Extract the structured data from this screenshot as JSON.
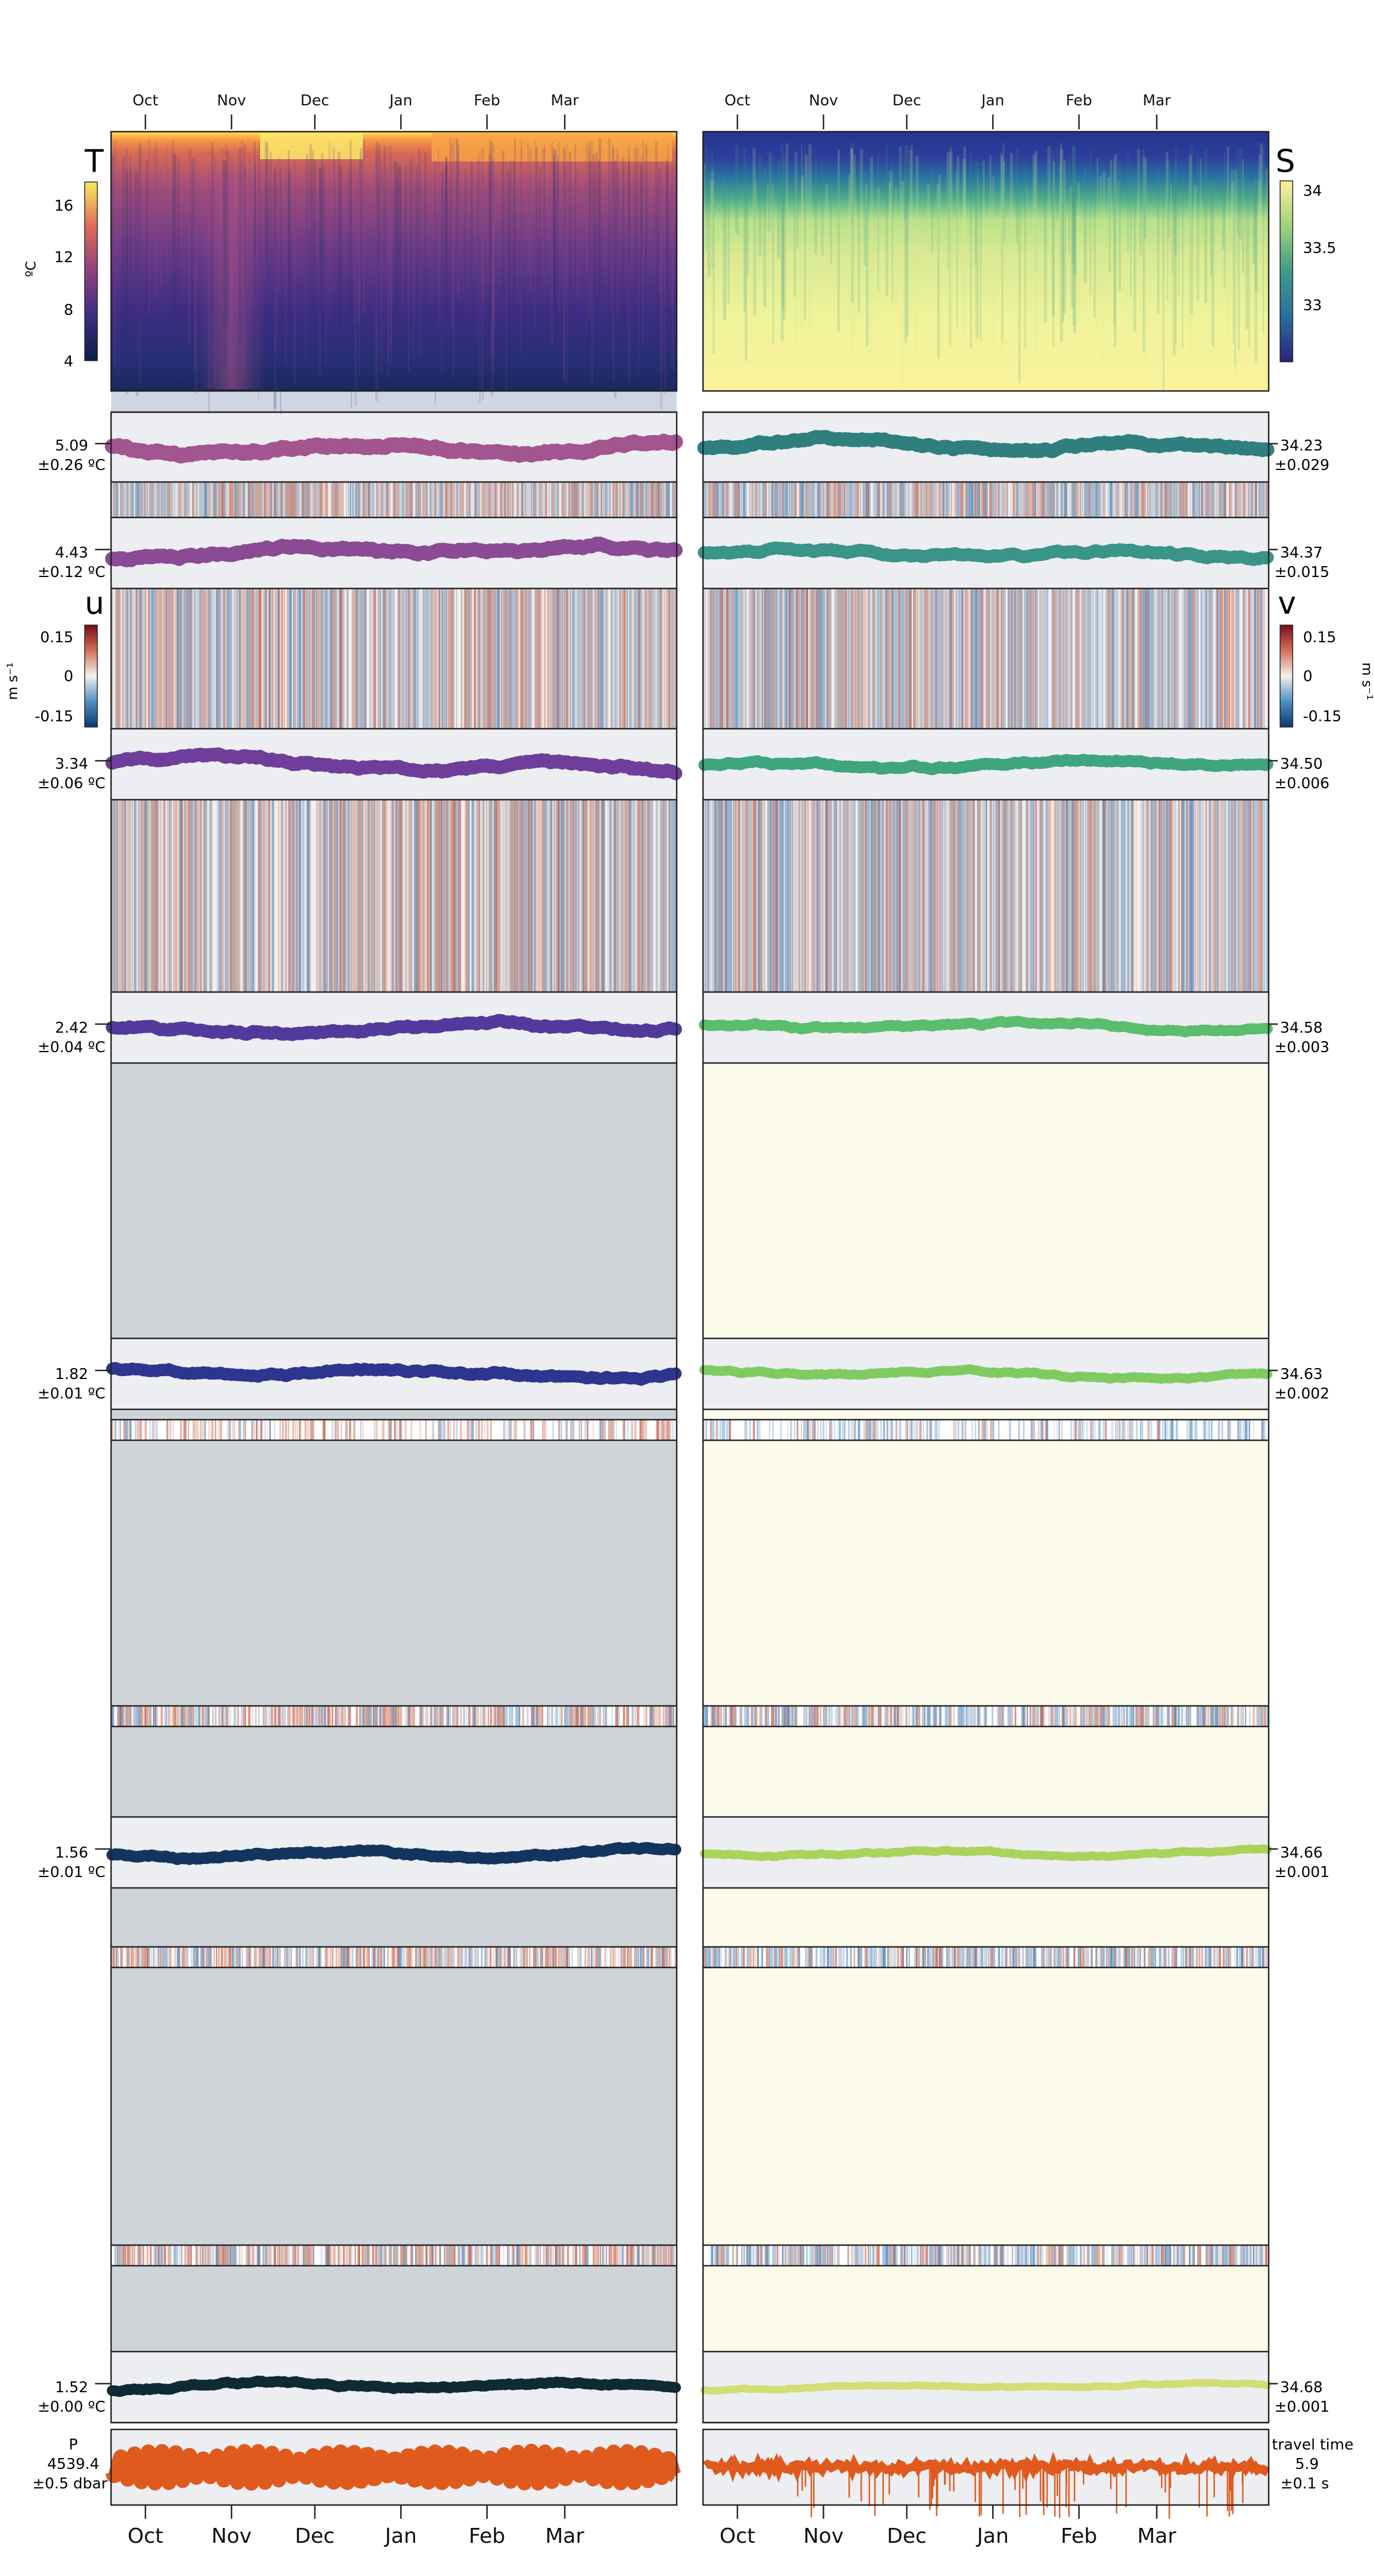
{
  "months": [
    "Oct",
    "Nov",
    "Dec",
    "Jan",
    "Feb",
    "Mar"
  ],
  "month_positions": [
    0,
    31,
    61,
    92,
    123,
    151
  ],
  "days_span": 181,
  "left_column": {
    "label": "T",
    "colorbar": {
      "ticks": [
        "16",
        "12",
        "8",
        "4"
      ],
      "unit": "ºC"
    },
    "velocity_label": "u",
    "velocity_colorbar": {
      "ticks": [
        "0.15",
        "0",
        "-0.15"
      ],
      "unit": "m s⁻¹"
    }
  },
  "right_column": {
    "label": "S",
    "colorbar": {
      "ticks": [
        "34",
        "33.5",
        "33"
      ]
    },
    "velocity_label": "v",
    "velocity_colorbar": {
      "ticks": [
        "0.15",
        "0",
        "-0.15"
      ],
      "unit": "m s⁻¹"
    }
  },
  "rows": [
    {
      "t_mean": "5.09",
      "t_std": "±0.26 ºC",
      "s_mean": "34.23",
      "s_std": "±0.029",
      "t_color": "#a3558f",
      "s_color": "#2f7f7f"
    },
    {
      "t_mean": "4.43",
      "t_std": "±0.12 ºC",
      "s_mean": "34.37",
      "s_std": "±0.015",
      "t_color": "#8a4a96",
      "s_color": "#3a9488"
    },
    {
      "t_mean": "3.34",
      "t_std": "±0.06 ºC",
      "s_mean": "34.50",
      "s_std": "±0.006",
      "t_color": "#6f3e9b",
      "s_color": "#3fa57f"
    },
    {
      "t_mean": "2.42",
      "t_std": "±0.04 ºC",
      "s_mean": "34.58",
      "s_std": "±0.003",
      "t_color": "#523a9c",
      "s_color": "#5bbd6e"
    },
    {
      "t_mean": "1.82",
      "t_std": "±0.01 ºC",
      "s_mean": "34.63",
      "s_std": "±0.002",
      "t_color": "#2d358f",
      "s_color": "#7fcb62"
    },
    {
      "t_mean": "1.56",
      "t_std": "±0.01 ºC",
      "s_mean": "34.66",
      "s_std": "±0.001",
      "t_color": "#13345f",
      "s_color": "#a9d35b"
    },
    {
      "t_mean": "1.52",
      "t_std": "±0.00 ºC",
      "s_mean": "34.68",
      "s_std": "±0.001",
      "t_color": "#0f2a35",
      "s_color": "#d2dd76"
    }
  ],
  "pressure": {
    "label": "P",
    "mean": "4539.4",
    "std": "±0.5 dbar",
    "color": "#e05a1e"
  },
  "travel_time": {
    "label": "travel time",
    "mean": "5.9",
    "std": "±0.1 s",
    "color": "#e05a1e"
  },
  "chart_data": [
    {
      "type": "heatmap",
      "panel": "T",
      "x_axis": [
        "Oct",
        "Nov",
        "Dec",
        "Jan",
        "Feb",
        "Mar"
      ],
      "colorbar_range": [
        4,
        18
      ],
      "colorbar_ticks": [
        4,
        8,
        12,
        16
      ],
      "unit": "ºC"
    },
    {
      "type": "heatmap",
      "panel": "S",
      "x_axis": [
        "Oct",
        "Nov",
        "Dec",
        "Jan",
        "Feb",
        "Mar"
      ],
      "colorbar_range": [
        32.6,
        34.15
      ],
      "colorbar_ticks": [
        33,
        33.5,
        34
      ]
    },
    {
      "type": "line",
      "panel": "temperature time series (left column)",
      "series": [
        {
          "mean": 5.09,
          "std": 0.26,
          "unit": "ºC"
        },
        {
          "mean": 4.43,
          "std": 0.12,
          "unit": "ºC"
        },
        {
          "mean": 3.34,
          "std": 0.06,
          "unit": "ºC"
        },
        {
          "mean": 2.42,
          "std": 0.04,
          "unit": "ºC"
        },
        {
          "mean": 1.82,
          "std": 0.01,
          "unit": "ºC"
        },
        {
          "mean": 1.56,
          "std": 0.01,
          "unit": "ºC"
        },
        {
          "mean": 1.52,
          "std": 0.0,
          "unit": "ºC"
        }
      ]
    },
    {
      "type": "line",
      "panel": "salinity time series (right column)",
      "series": [
        {
          "mean": 34.23,
          "std": 0.029
        },
        {
          "mean": 34.37,
          "std": 0.015
        },
        {
          "mean": 34.5,
          "std": 0.006
        },
        {
          "mean": 34.58,
          "std": 0.003
        },
        {
          "mean": 34.63,
          "std": 0.002
        },
        {
          "mean": 34.66,
          "std": 0.001
        },
        {
          "mean": 34.68,
          "std": 0.001
        }
      ]
    },
    {
      "type": "line",
      "panel": "P",
      "series": [
        {
          "name": "P",
          "mean": 4539.4,
          "std": 0.5,
          "unit": "dbar"
        }
      ]
    },
    {
      "type": "line",
      "panel": "travel time",
      "series": [
        {
          "name": "travel time",
          "mean": 5.9,
          "std": 0.1,
          "unit": "s"
        }
      ]
    },
    {
      "type": "heatmap",
      "panel": "u / v velocity",
      "colorbar_range": [
        -0.2,
        0.2
      ],
      "colorbar_ticks": [
        -0.15,
        0,
        0.15
      ],
      "unit": "m s⁻¹"
    }
  ]
}
